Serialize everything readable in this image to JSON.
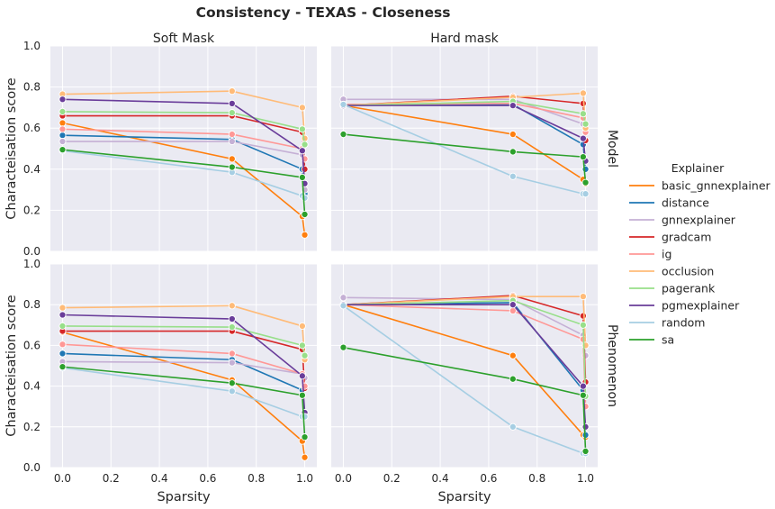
{
  "chart_data": {
    "type": "line",
    "title": "Consistency - TEXAS - Closeness",
    "columns": [
      "Soft Mask",
      "Hard mask"
    ],
    "rows": [
      "Model",
      "Phenomenon"
    ],
    "xlabel": "Sparsity",
    "ylabel": "Characteisation score",
    "xlim": [
      -0.05,
      1.05
    ],
    "ylim": [
      0.0,
      1.0
    ],
    "xticks": [
      "0.0",
      "0.2",
      "0.4",
      "0.6",
      "0.8",
      "1.0"
    ],
    "yticks": [
      "0.0",
      "0.2",
      "0.4",
      "0.6",
      "0.8",
      "1.0"
    ],
    "x": [
      0.0,
      0.7,
      0.99,
      1.0
    ],
    "grid": true,
    "legend": {
      "title": "Explainer",
      "position": "right",
      "items": [
        {
          "name": "basic_gnnexplainer",
          "color": "#ff7f0e"
        },
        {
          "name": "distance",
          "color": "#1f77b4"
        },
        {
          "name": "gnnexplainer",
          "color": "#c5b0d5"
        },
        {
          "name": "gradcam",
          "color": "#d62728"
        },
        {
          "name": "ig",
          "color": "#ff9896"
        },
        {
          "name": "occlusion",
          "color": "#ffbb78"
        },
        {
          "name": "pagerank",
          "color": "#98df8a"
        },
        {
          "name": "pgmexplainer",
          "color": "#6a3d9a"
        },
        {
          "name": "random",
          "color": "#a6cee3"
        },
        {
          "name": "sa",
          "color": "#2ca02c"
        }
      ]
    },
    "panels": [
      {
        "column": "Soft Mask",
        "row": "Model",
        "series": [
          {
            "name": "basic_gnnexplainer",
            "values": [
              0.625,
              0.45,
              0.17,
              0.08
            ]
          },
          {
            "name": "distance",
            "values": [
              0.565,
              0.545,
              0.4,
              0.28
            ]
          },
          {
            "name": "gnnexplainer",
            "values": [
              0.535,
              0.535,
              0.47,
              0.3
            ]
          },
          {
            "name": "gradcam",
            "values": [
              0.66,
              0.66,
              0.58,
              0.4
            ]
          },
          {
            "name": "ig",
            "values": [
              0.595,
              0.57,
              0.5,
              0.45
            ]
          },
          {
            "name": "occlusion",
            "values": [
              0.765,
              0.78,
              0.7,
              0.55
            ]
          },
          {
            "name": "pagerank",
            "values": [
              0.68,
              0.675,
              0.595,
              0.52
            ]
          },
          {
            "name": "pgmexplainer",
            "values": [
              0.74,
              0.72,
              0.49,
              0.33
            ]
          },
          {
            "name": "random",
            "values": [
              0.49,
              0.385,
              0.27,
              0.26
            ]
          },
          {
            "name": "sa",
            "values": [
              0.495,
              0.41,
              0.36,
              0.18
            ]
          }
        ]
      },
      {
        "column": "Hard mask",
        "row": "Model",
        "series": [
          {
            "name": "basic_gnnexplainer",
            "values": [
              0.71,
              0.57,
              0.35,
              0.33
            ]
          },
          {
            "name": "distance",
            "values": [
              0.715,
              0.715,
              0.52,
              0.4
            ]
          },
          {
            "name": "gnnexplainer",
            "values": [
              0.74,
              0.74,
              0.62,
              0.58
            ]
          },
          {
            "name": "gradcam",
            "values": [
              0.71,
              0.755,
              0.72,
              0.54
            ]
          },
          {
            "name": "ig",
            "values": [
              0.715,
              0.72,
              0.65,
              0.58
            ]
          },
          {
            "name": "occlusion",
            "values": [
              0.71,
              0.75,
              0.77,
              0.6
            ]
          },
          {
            "name": "pagerank",
            "values": [
              0.71,
              0.73,
              0.67,
              0.62
            ]
          },
          {
            "name": "pgmexplainer",
            "values": [
              0.71,
              0.71,
              0.55,
              0.44
            ]
          },
          {
            "name": "random",
            "values": [
              0.715,
              0.365,
              0.28,
              0.28
            ]
          },
          {
            "name": "sa",
            "values": [
              0.57,
              0.485,
              0.46,
              0.335
            ]
          }
        ]
      },
      {
        "column": "Soft Mask",
        "row": "Phenomenon",
        "series": [
          {
            "name": "basic_gnnexplainer",
            "values": [
              0.665,
              0.43,
              0.13,
              0.05
            ]
          },
          {
            "name": "distance",
            "values": [
              0.56,
              0.53,
              0.38,
              0.27
            ]
          },
          {
            "name": "gnnexplainer",
            "values": [
              0.52,
              0.515,
              0.46,
              0.44
            ]
          },
          {
            "name": "gradcam",
            "values": [
              0.67,
              0.67,
              0.58,
              0.39
            ]
          },
          {
            "name": "ig",
            "values": [
              0.605,
              0.56,
              0.46,
              0.4
            ]
          },
          {
            "name": "occlusion",
            "values": [
              0.785,
              0.795,
              0.695,
              0.53
            ]
          },
          {
            "name": "pagerank",
            "values": [
              0.695,
              0.69,
              0.6,
              0.55
            ]
          },
          {
            "name": "pgmexplainer",
            "values": [
              0.75,
              0.73,
              0.45,
              0.27
            ]
          },
          {
            "name": "random",
            "values": [
              0.49,
              0.375,
              0.25,
              0.25
            ]
          },
          {
            "name": "sa",
            "values": [
              0.495,
              0.415,
              0.355,
              0.15
            ]
          }
        ]
      },
      {
        "column": "Hard mask",
        "row": "Phenomenon",
        "series": [
          {
            "name": "basic_gnnexplainer",
            "values": [
              0.8,
              0.55,
              0.16,
              0.15
            ]
          },
          {
            "name": "distance",
            "values": [
              0.8,
              0.81,
              0.38,
              0.16
            ]
          },
          {
            "name": "gnnexplainer",
            "values": [
              0.835,
              0.825,
              0.65,
              0.55
            ]
          },
          {
            "name": "gradcam",
            "values": [
              0.8,
              0.845,
              0.745,
              0.42
            ]
          },
          {
            "name": "ig",
            "values": [
              0.8,
              0.77,
              0.63,
              0.3
            ]
          },
          {
            "name": "occlusion",
            "values": [
              0.8,
              0.84,
              0.84,
              0.6
            ]
          },
          {
            "name": "pagerank",
            "values": [
              0.8,
              0.82,
              0.7,
              0.35
            ]
          },
          {
            "name": "pgmexplainer",
            "values": [
              0.8,
              0.8,
              0.4,
              0.2
            ]
          },
          {
            "name": "random",
            "values": [
              0.795,
              0.2,
              0.07,
              0.07
            ]
          },
          {
            "name": "sa",
            "values": [
              0.59,
              0.435,
              0.355,
              0.08
            ]
          }
        ]
      }
    ]
  }
}
